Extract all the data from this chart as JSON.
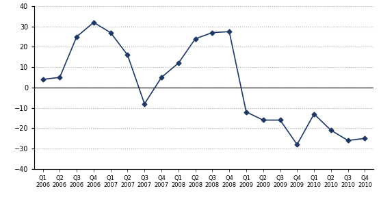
{
  "values": [
    4,
    5,
    25,
    32,
    27,
    16,
    -8,
    5,
    12,
    24,
    27,
    27.5,
    -12,
    -16,
    -16,
    -28,
    -13,
    -21,
    -26,
    -25
  ],
  "quarters": [
    "Q1",
    "Q2",
    "Q3",
    "Q4",
    "Q1",
    "Q2",
    "Q3",
    "Q4",
    "Q1",
    "Q2",
    "Q3",
    "Q4",
    "Q1",
    "Q2",
    "Q3",
    "Q4",
    "Q1",
    "Q2",
    "Q3",
    "Q4"
  ],
  "years": [
    "2006",
    "2006",
    "2006",
    "2006",
    "2007",
    "2007",
    "2007",
    "2007",
    "2008",
    "2008",
    "2008",
    "2008",
    "2009",
    "2009",
    "2009",
    "2009",
    "2010",
    "2010",
    "2010",
    "2010"
  ],
  "ylim": [
    -40,
    40
  ],
  "yticks": [
    -40,
    -30,
    -20,
    -10,
    0,
    10,
    20,
    30,
    40
  ],
  "line_color": "#1F3864",
  "marker": "D",
  "marker_size": 3.5,
  "grid_color": "#AAAAAA",
  "bg_color": "#FFFFFF",
  "plot_bg_color": "#FFFFFF"
}
